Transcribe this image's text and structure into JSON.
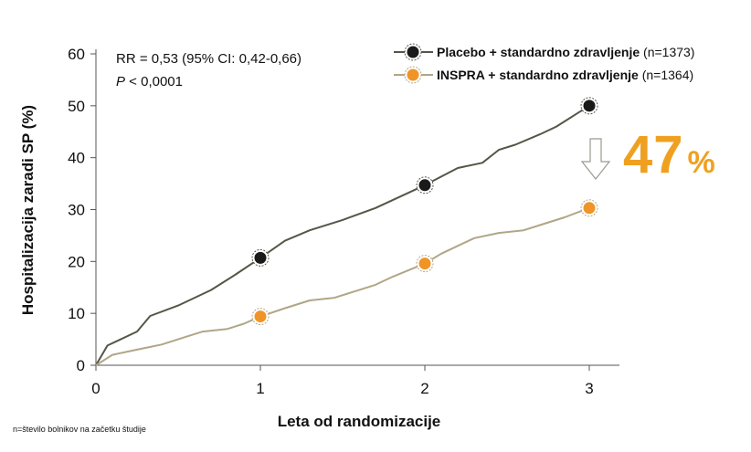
{
  "stats": {
    "rr": "RR = 0,53 (95% CI: 0,42-0,66)",
    "p_prefix": "P",
    "p_rest": " < 0,0001"
  },
  "legend": [
    {
      "name": "Placebo + standardno zdravljenje",
      "note": " (n=1373)",
      "color": "#555548",
      "marker": "#1a1a1a"
    },
    {
      "name": "INSPRA + standardno zdravljenje",
      "note": " (n=1364)",
      "color": "#b0a686",
      "marker": "#f09428"
    }
  ],
  "reduction": {
    "value": "47",
    "unit": "%"
  },
  "footnote": "n=število bolnikov na začetku študije",
  "chart_data": {
    "type": "line",
    "xlabel": "Leta od randomizacije",
    "ylabel": "Hospitalizacija zaradi SP  (%)",
    "xlim": [
      0,
      3.2
    ],
    "ylim": [
      0,
      60
    ],
    "xticks": [
      "0",
      "1",
      "2",
      "3"
    ],
    "yticks": [
      "0",
      "10",
      "20",
      "30",
      "40",
      "50",
      "60"
    ],
    "grid": false,
    "legend_position": "top-right",
    "series": [
      {
        "name": "Placebo + standardno zdravljenje",
        "x": [
          0,
          0.07,
          0.25,
          0.33,
          0.5,
          0.7,
          0.85,
          1,
          1.15,
          1.3,
          1.5,
          1.7,
          1.85,
          2,
          2.2,
          2.35,
          2.45,
          2.55,
          2.7,
          2.8,
          3
        ],
        "y": [
          0,
          3.8,
          6.5,
          9.5,
          11.5,
          14.5,
          17.5,
          20.7,
          24,
          26,
          28,
          30.3,
          32.5,
          34.7,
          38,
          39,
          41.5,
          42.5,
          44.5,
          46,
          50
        ]
      },
      {
        "name": "INSPRA + standardno zdravljenje",
        "x": [
          0,
          0.1,
          0.25,
          0.4,
          0.55,
          0.65,
          0.8,
          0.9,
          1,
          1.15,
          1.3,
          1.45,
          1.55,
          1.7,
          1.8,
          2,
          2.1,
          2.3,
          2.45,
          2.6,
          2.7,
          2.85,
          3
        ],
        "y": [
          0,
          2,
          3,
          4,
          5.5,
          6.5,
          7,
          8,
          9.4,
          11,
          12.5,
          13,
          14,
          15.5,
          17,
          19.6,
          21.5,
          24.5,
          25.5,
          26,
          27,
          28.5,
          30.3
        ]
      }
    ],
    "markers": [
      {
        "series": 0,
        "x": [
          1,
          2,
          3
        ],
        "y": [
          20.7,
          34.7,
          50
        ]
      },
      {
        "series": 1,
        "x": [
          1,
          2,
          3
        ],
        "y": [
          9.4,
          19.6,
          30.3
        ]
      }
    ]
  }
}
